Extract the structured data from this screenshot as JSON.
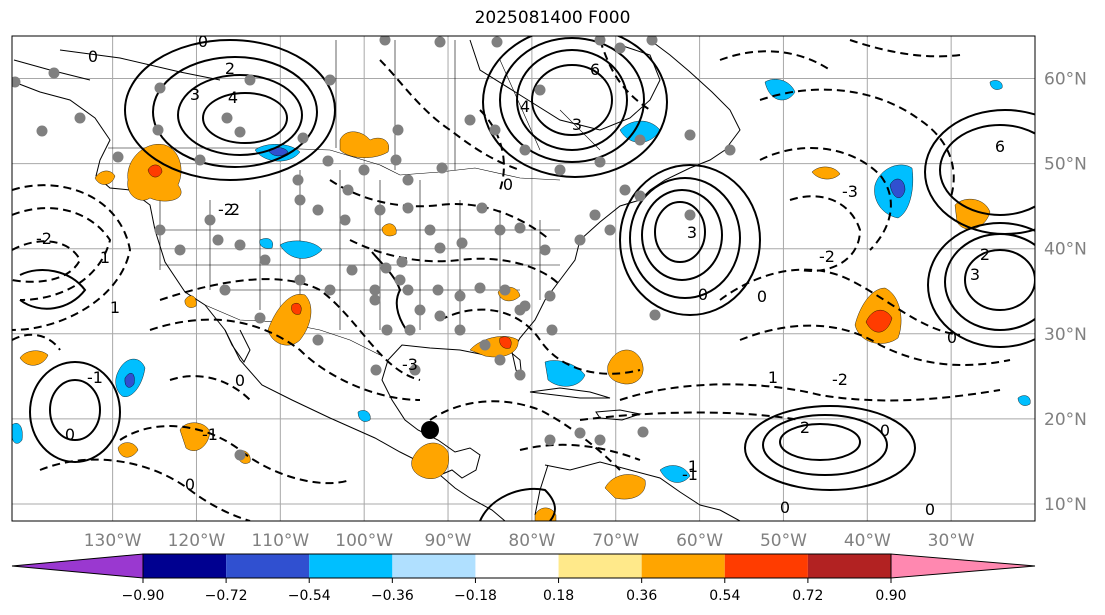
{
  "title": "2025081400 F000",
  "map": {
    "projection": "plate-carree",
    "lon_range": [
      -142,
      -20
    ],
    "lat_range": [
      8,
      65
    ],
    "longitude_labels": [
      "130°W",
      "120°W",
      "110°W",
      "100°W",
      "90°W",
      "80°W",
      "70°W",
      "60°W",
      "50°W",
      "40°W",
      "30°W"
    ],
    "latitude_labels": [
      "60°N",
      "50°N",
      "40°N",
      "30°N",
      "20°N",
      "10°N"
    ],
    "label_color": "#808080",
    "grid": true
  },
  "contour_labels": [
    "0",
    "-2",
    "1",
    "-1",
    "2",
    "3",
    "4",
    "-3",
    "6"
  ],
  "station_marker_color": "#808080",
  "highlight_marker_color": "#000000",
  "colorbar": {
    "orientation": "horizontal",
    "extend": "both",
    "levels": [
      "−0.90",
      "−0.72",
      "−0.54",
      "−0.36",
      "−0.18",
      "0.18",
      "0.36",
      "0.54",
      "0.72",
      "0.90"
    ],
    "colors": [
      "#9a38d0",
      "#000090",
      "#3050d0",
      "#00bfff",
      "#b0e0ff",
      "#ffffff",
      "#ffe98a",
      "#ffa500",
      "#ff3c00",
      "#b22222",
      "#ff88b0"
    ]
  }
}
